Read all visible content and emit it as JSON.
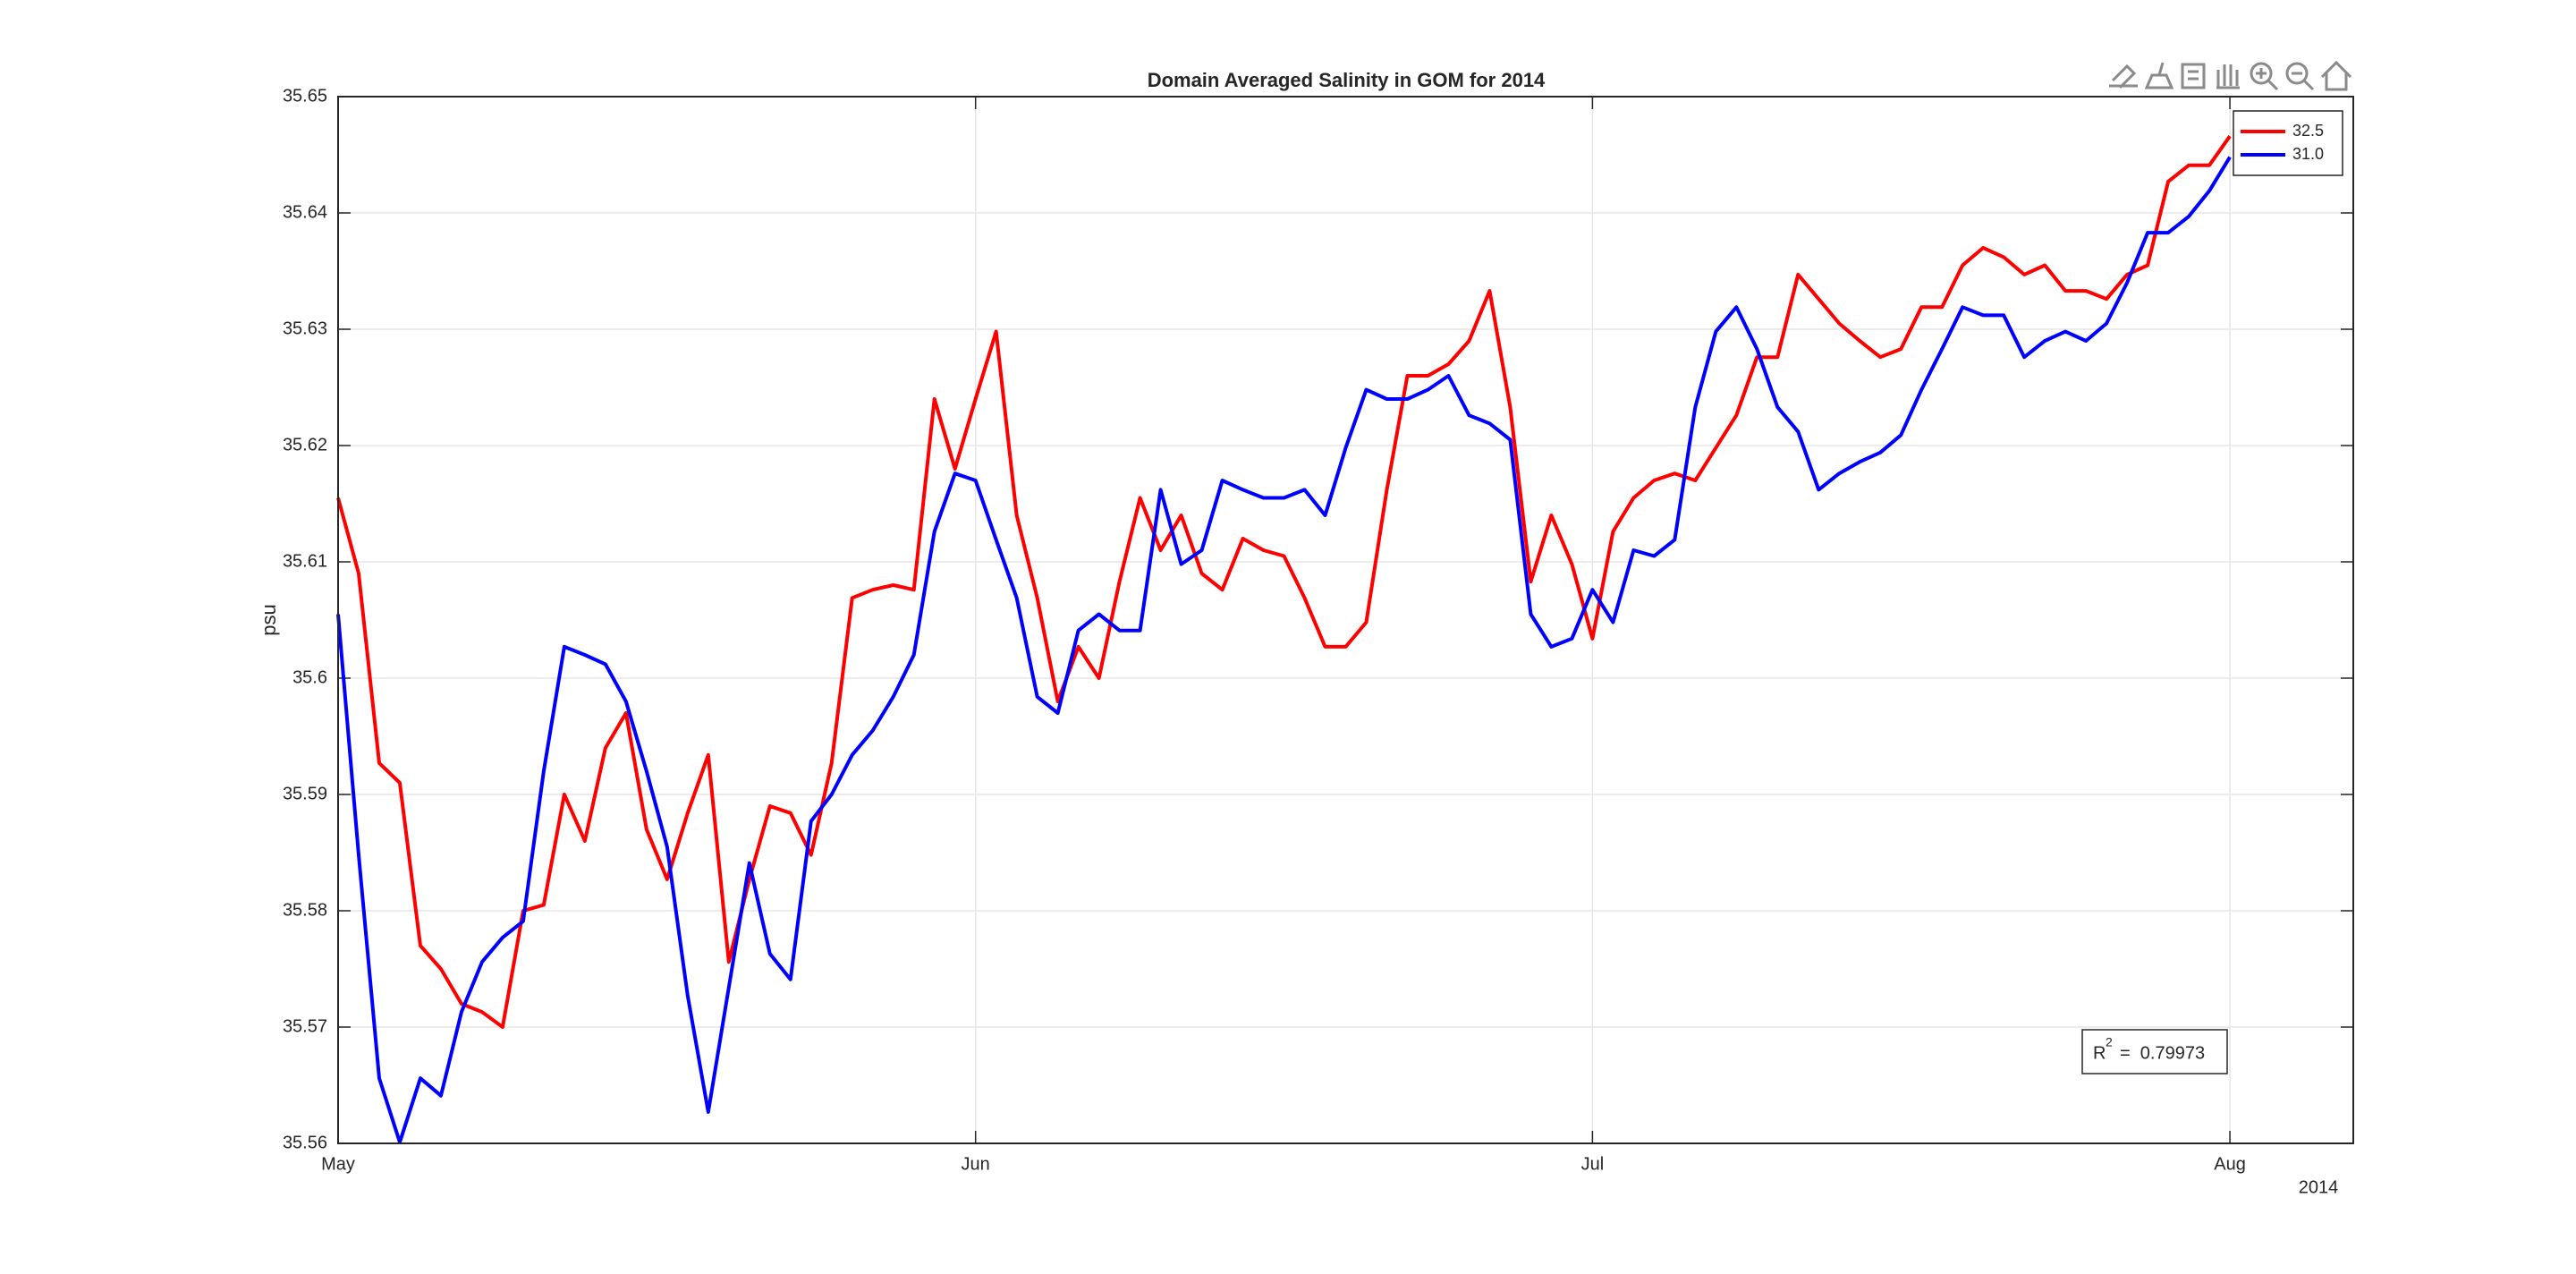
{
  "chart_data": {
    "type": "line",
    "title": "Domain Averaged Salinity in GOM for 2014",
    "y_label": "psu",
    "x_secondary_label": "2014",
    "x": [
      0,
      1,
      2,
      3,
      4,
      5,
      6,
      7,
      8,
      9,
      10,
      11,
      12,
      13,
      14,
      15,
      16,
      17,
      18,
      19,
      20,
      21,
      22,
      23,
      24,
      25,
      26,
      27,
      28,
      29,
      30,
      31,
      32,
      33,
      34,
      35,
      36,
      37,
      38,
      39,
      40,
      41,
      42,
      43,
      44,
      45,
      46,
      47,
      48,
      49,
      50,
      51,
      52,
      53,
      54,
      55,
      56,
      57,
      58,
      59,
      60,
      61,
      62,
      63,
      64,
      65,
      66,
      67,
      68,
      69,
      70,
      71,
      72,
      73,
      74,
      75,
      76,
      77,
      78,
      79,
      80,
      81,
      82,
      83,
      84,
      85,
      86,
      87,
      88,
      89,
      90,
      91,
      92
    ],
    "xlim": [
      0,
      98
    ],
    "xticks": [
      {
        "value": 0,
        "label": "May"
      },
      {
        "value": 31,
        "label": "Jun"
      },
      {
        "value": 61,
        "label": "Jul"
      },
      {
        "value": 92,
        "label": "Aug"
      }
    ],
    "ylim": [
      35.56,
      35.65
    ],
    "yticks": [
      35.56,
      35.57,
      35.58,
      35.59,
      35.6,
      35.61,
      35.62,
      35.63,
      35.64,
      35.65
    ],
    "grid": true,
    "legend_position": "northeast",
    "series": [
      {
        "name": "32.5",
        "color": "#ff0000",
        "values": [
          35.6155,
          35.609,
          35.5927,
          35.591,
          35.577,
          35.575,
          35.572,
          35.5713,
          35.57,
          35.58,
          35.5805,
          35.59,
          35.586,
          35.594,
          35.597,
          35.587,
          35.5827,
          35.5884,
          35.5934,
          35.5756,
          35.5827,
          35.589,
          35.5884,
          35.5848,
          35.5927,
          35.6069,
          35.6076,
          35.608,
          35.6076,
          35.624,
          35.618,
          35.624,
          35.6298,
          35.614,
          35.6069,
          35.598,
          35.6027,
          35.6,
          35.6083,
          35.6155,
          35.611,
          35.614,
          35.609,
          35.6076,
          35.612,
          35.611,
          35.6105,
          35.6069,
          35.6027,
          35.6027,
          35.6048,
          35.6162,
          35.626,
          35.626,
          35.627,
          35.629,
          35.6333,
          35.6233,
          35.6083,
          35.614,
          35.6098,
          35.6034,
          35.6126,
          35.6155,
          35.617,
          35.6176,
          35.617,
          35.6198,
          35.6226,
          35.6276,
          35.6276,
          35.6347,
          35.6326,
          35.6305,
          35.629,
          35.6276,
          35.6283,
          35.6319,
          35.6319,
          35.6355,
          35.637,
          35.6362,
          35.6347,
          35.6355,
          35.6333,
          35.6333,
          35.6326,
          35.6347,
          35.6355,
          35.6427,
          35.6441,
          35.6441,
          35.6466
        ]
      },
      {
        "name": "31.0",
        "color": "#0000ff",
        "values": [
          35.6055,
          35.5848,
          35.5656,
          35.5601,
          35.5656,
          35.5641,
          35.5713,
          35.5756,
          35.5777,
          35.5791,
          35.592,
          35.6027,
          35.602,
          35.6012,
          35.598,
          35.592,
          35.5855,
          35.5727,
          35.5627,
          35.5734,
          35.5841,
          35.5763,
          35.5741,
          35.5877,
          35.59,
          35.5934,
          35.5955,
          35.5984,
          35.602,
          35.6126,
          35.6176,
          35.617,
          35.6119,
          35.6069,
          35.5984,
          35.597,
          35.6041,
          35.6055,
          35.6041,
          35.6041,
          35.6162,
          35.6098,
          35.611,
          35.617,
          35.6162,
          35.6155,
          35.6155,
          35.6162,
          35.614,
          35.6198,
          35.6248,
          35.624,
          35.624,
          35.6248,
          35.626,
          35.6226,
          35.6219,
          35.6205,
          35.6055,
          35.6027,
          35.6034,
          35.6076,
          35.6048,
          35.611,
          35.6105,
          35.6119,
          35.6233,
          35.6298,
          35.6319,
          35.6283,
          35.6233,
          35.6212,
          35.6162,
          35.6176,
          35.6186,
          35.6194,
          35.6209,
          35.6248,
          35.6283,
          35.6319,
          35.6312,
          35.6312,
          35.6276,
          35.629,
          35.6298,
          35.629,
          35.6305,
          35.634,
          35.6383,
          35.6383,
          35.6397,
          35.6419,
          35.6448
        ]
      }
    ],
    "annotation": {
      "base": "R",
      "superscript": "2",
      "text": "=  0.79973"
    }
  }
}
